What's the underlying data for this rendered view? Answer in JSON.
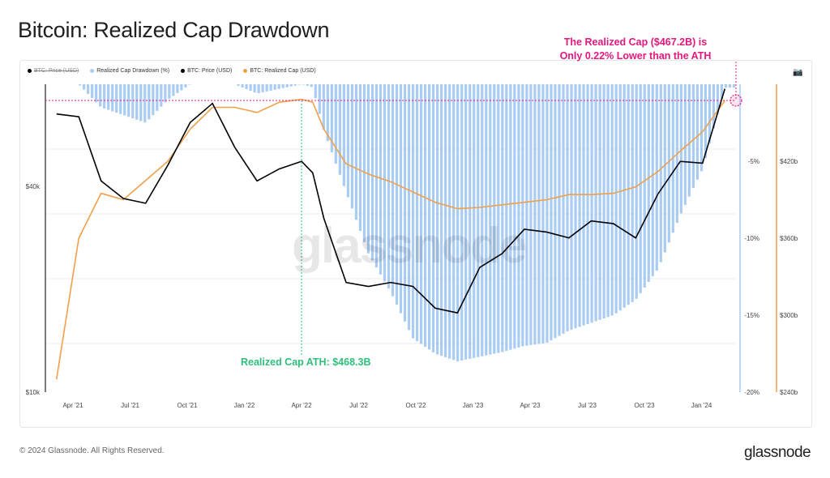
{
  "title": "Bitcoin: Realized Cap Drawdown",
  "legend": [
    {
      "label": "BTC: Price (USD)",
      "color": "#000000",
      "hidden": true
    },
    {
      "label": "Realized Cap Drawdown (%)",
      "color": "#a9ccf4",
      "hidden": false
    },
    {
      "label": "BTC: Price (USD)",
      "color": "#000000",
      "hidden": false
    },
    {
      "label": "BTC: Realized Cap (USD)",
      "color": "#f0a04b",
      "hidden": false
    }
  ],
  "annotations": {
    "pink_line1": "The Realized Cap ($467.2B) is",
    "pink_line2": "Only 0.22% Lower than the ATH",
    "green": "Realized Cap ATH: $468.3B"
  },
  "footer": "© 2024 Glassnode. All Rights Reserved.",
  "brand": "glassnode",
  "watermark": "glassnode",
  "colors": {
    "price": "#000000",
    "realized_cap": "#f0a04b",
    "drawdown": "#a9ccf4",
    "ath_line": "#e4177f",
    "ath_marker": "#2fbf7a"
  },
  "chart_data": {
    "type": "line",
    "x_ticks": [
      "Apr '21",
      "Jul '21",
      "Oct '21",
      "Jan '22",
      "Apr '22",
      "Jul '22",
      "Oct '22",
      "Jan '23",
      "Apr '23",
      "Jul '23",
      "Oct '23",
      "Jan '24"
    ],
    "y_left_ticks": [
      "$40k",
      "$10k"
    ],
    "y_left_scale": "log",
    "y_drawdown_ticks": [
      "-5%",
      "-10%",
      "-15%",
      "-20%"
    ],
    "y_realized_ticks": [
      "$420b",
      "$360b",
      "$300b",
      "$240b"
    ],
    "x": [
      2021.2,
      2021.3,
      2021.4,
      2021.5,
      2021.6,
      2021.7,
      2021.8,
      2021.9,
      2022.0,
      2022.1,
      2022.2,
      2022.3,
      2022.35,
      2022.4,
      2022.5,
      2022.6,
      2022.7,
      2022.8,
      2022.9,
      2023.0,
      2023.1,
      2023.2,
      2023.3,
      2023.4,
      2023.5,
      2023.6,
      2023.7,
      2023.8,
      2023.9,
      2024.0,
      2024.1,
      2024.2
    ],
    "series": [
      {
        "name": "BTC: Price (USD)",
        "axis": "left",
        "values": [
          58000,
          57000,
          38000,
          34000,
          33000,
          42000,
          55000,
          62000,
          47000,
          38000,
          41000,
          43000,
          40000,
          30000,
          20000,
          19500,
          20000,
          19500,
          17000,
          16500,
          22000,
          24000,
          28000,
          27500,
          26500,
          29500,
          29000,
          26500,
          35000,
          43000,
          42500,
          68000
        ]
      },
      {
        "name": "BTC: Realized Cap (USD)",
        "axis": "right",
        "values": [
          250,
          360,
          395,
          390,
          405,
          420,
          445,
          462,
          462,
          458,
          466,
          468.3,
          466,
          445,
          418,
          410,
          404,
          396,
          388,
          383,
          384,
          386,
          388,
          390,
          394,
          394,
          395,
          400,
          412,
          428,
          443,
          467.2
        ]
      },
      {
        "name": "Realized Cap Drawdown (%)",
        "axis": "drawdown",
        "values": [
          0,
          0,
          -1.5,
          -2.0,
          -2.5,
          -1.0,
          0,
          0,
          0,
          -0.6,
          -0.3,
          0,
          -0.2,
          -3.0,
          -7.0,
          -11.0,
          -13.5,
          -16.5,
          -17.5,
          -18.0,
          -17.7,
          -17.4,
          -17.0,
          -16.8,
          -16.0,
          -15.5,
          -15.0,
          -14.0,
          -12.0,
          -8.5,
          -5.5,
          -0.22
        ]
      }
    ],
    "ath_realized_cap_b": 468.3,
    "current_realized_cap_b": 467.2,
    "current_drawdown_pct": -0.22,
    "legend_placement": "top-left",
    "grid": true
  }
}
